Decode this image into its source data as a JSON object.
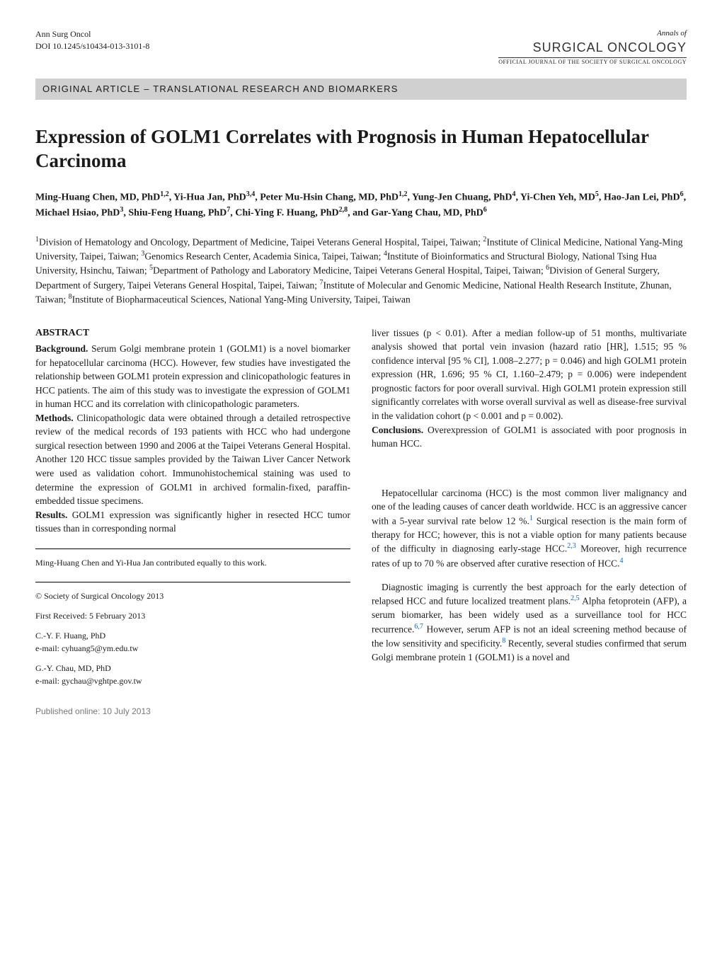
{
  "header": {
    "journal_short": "Ann Surg Oncol",
    "doi": "DOI 10.1245/s10434-013-3101-8",
    "annals_of": "Annals of",
    "surgical": "SURGICAL ONCOLOGY",
    "official_journal": "OFFICIAL JOURNAL OF THE SOCIETY OF SURGICAL ONCOLOGY"
  },
  "article_type": "ORIGINAL ARTICLE – TRANSLATIONAL RESEARCH AND BIOMARKERS",
  "title": "Expression of GOLM1 Correlates with Prognosis in Human Hepatocellular Carcinoma",
  "authors_html": "Ming-Huang Chen, MD, PhD<sup>1,2</sup>, Yi-Hua Jan, PhD<sup>3,4</sup>, Peter Mu-Hsin Chang, MD, PhD<sup>1,2</sup>, Yung-Jen Chuang, PhD<sup>4</sup>, Yi-Chen Yeh, MD<sup>5</sup>, Hao-Jan Lei, PhD<sup>6</sup>, Michael Hsiao, PhD<sup>3</sup>, Shiu-Feng Huang, PhD<sup>7</sup>, Chi-Ying F. Huang, PhD<sup>2,8</sup>, and Gar-Yang Chau, MD, PhD<sup>6</sup>",
  "affiliations_html": "<sup>1</sup>Division of Hematology and Oncology, Department of Medicine, Taipei Veterans General Hospital, Taipei, Taiwan; <sup>2</sup>Institute of Clinical Medicine, National Yang-Ming University, Taipei, Taiwan; <sup>3</sup>Genomics Research Center, Academia Sinica, Taipei, Taiwan; <sup>4</sup>Institute of Bioinformatics and Structural Biology, National Tsing Hua University, Hsinchu, Taiwan; <sup>5</sup>Department of Pathology and Laboratory Medicine, Taipei Veterans General Hospital, Taipei, Taiwan; <sup>6</sup>Division of General Surgery, Department of Surgery, Taipei Veterans General Hospital, Taipei, Taiwan; <sup>7</sup>Institute of Molecular and Genomic Medicine, National Health Research Institute, Zhunan, Taiwan; <sup>8</sup>Institute of Biopharmaceutical Sciences, National Yang-Ming University, Taipei, Taiwan",
  "abstract": {
    "heading": "ABSTRACT",
    "background_label": "Background.",
    "background_text": " Serum Golgi membrane protein 1 (GOLM1) is a novel biomarker for hepatocellular carcinoma (HCC). However, few studies have investigated the relationship between GOLM1 protein expression and clinicopathologic features in HCC patients. The aim of this study was to investigate the expression of GOLM1 in human HCC and its correlation with clinicopathologic parameters.",
    "methods_label": "Methods.",
    "methods_text": " Clinicopathologic data were obtained through a detailed retrospective review of the medical records of 193 patients with HCC who had undergone surgical resection between 1990 and 2006 at the Taipei Veterans General Hospital. Another 120 HCC tissue samples provided by the Taiwan Liver Cancer Network were used as validation cohort. Immunohistochemical staining was used to determine the expression of GOLM1 in archived formalin-fixed, paraffin-embedded tissue specimens.",
    "results_label": "Results.",
    "results_text_left": " GOLM1 expression was significantly higher in resected HCC tumor tissues than in corresponding normal",
    "results_text_right": "liver tissues (p < 0.01). After a median follow-up of 51 months, multivariate analysis showed that portal vein invasion (hazard ratio [HR], 1.515; 95 % confidence interval [95 % CI], 1.008–2.277; p = 0.046) and high GOLM1 protein expression (HR, 1.696; 95 % CI, 1.160–2.479; p = 0.006) were independent prognostic factors for poor overall survival. High GOLM1 protein expression still significantly correlates with worse overall survival as well as disease-free survival in the validation cohort (p < 0.001 and p = 0.002).",
    "conclusions_label": "Conclusions.",
    "conclusions_text": " Overexpression of GOLM1 is associated with poor prognosis in human HCC."
  },
  "body": {
    "para1_html": "Hepatocellular carcinoma (HCC) is the most common liver malignancy and one of the leading causes of cancer death worldwide. HCC is an aggressive cancer with a 5-year survival rate below 12 %.<sup class=\"ref-sup\">1</sup> Surgical resection is the main form of therapy for HCC; however, this is not a viable option for many patients because of the difficulty in diagnosing early-stage HCC.<sup class=\"ref-sup\">2,3</sup> Moreover, high recurrence rates of up to 70 % are observed after curative resection of HCC.<sup class=\"ref-sup\">4</sup>",
    "para2_html": "Diagnostic imaging is currently the best approach for the early detection of relapsed HCC and future localized treatment plans.<sup class=\"ref-sup\">2,5</sup> Alpha fetoprotein (AFP), a serum biomarker, has been widely used as a surveillance tool for HCC recurrence.<sup class=\"ref-sup\">6,7</sup> However, serum AFP is not an ideal screening method because of the low sensitivity and specificity.<sup class=\"ref-sup\">8</sup> Recently, several studies confirmed that serum Golgi membrane protein 1 (GOLM1) is a novel and"
  },
  "footnotes": {
    "equal_contrib": "Ming-Huang Chen and Yi-Hua Jan contributed equally to this work.",
    "copyright": "© Society of Surgical Oncology 2013",
    "received": "First Received: 5 February 2013",
    "corr1_name": "C.-Y. F. Huang, PhD",
    "corr1_email": "e-mail: cyhuang5@ym.edu.tw",
    "corr2_name": "G.-Y. Chau, MD, PhD",
    "corr2_email": "e-mail: gychau@vghtpe.gov.tw"
  },
  "published_online": "Published online: 10 July 2013",
  "colors": {
    "bg": "#ffffff",
    "text": "#1a1a1a",
    "bar_bg": "#d0d0d0",
    "link": "#0066cc",
    "grey": "#777777"
  }
}
